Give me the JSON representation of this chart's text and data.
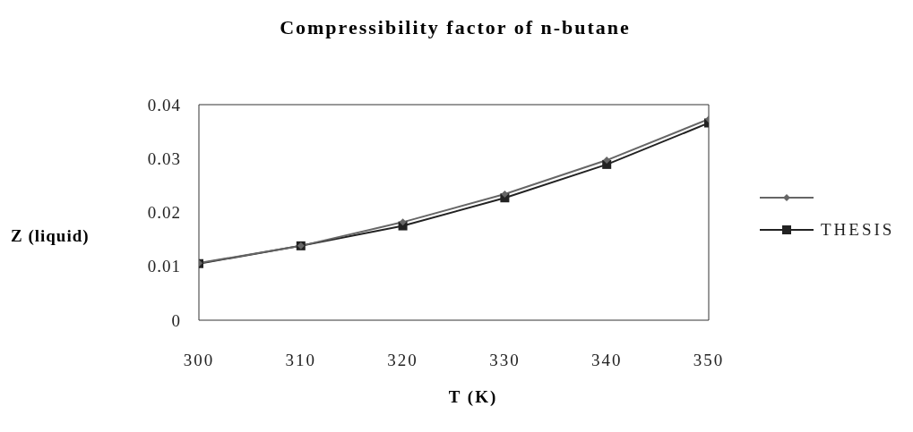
{
  "chart_data": {
    "type": "line",
    "title": "Compressibility factor of n-butane",
    "xlabel": "T (K)",
    "ylabel": "Z (liquid)",
    "x": [
      300,
      310,
      320,
      330,
      340,
      350
    ],
    "series": [
      {
        "color": "#666666",
        "marker": "diamond",
        "values": [
          0.0106,
          0.0138,
          0.0182,
          0.0234,
          0.0297,
          0.0373
        ]
      },
      {
        "name": "THESIS",
        "color": "#222222",
        "marker": "square",
        "values": [
          0.0105,
          0.0138,
          0.0175,
          0.0227,
          0.0289,
          0.0366
        ]
      }
    ],
    "xlim": [
      300,
      350
    ],
    "xticks": [
      300,
      310,
      320,
      330,
      340,
      350
    ],
    "ylim": [
      0,
      0.04
    ],
    "yticks": [
      0,
      0.01,
      0.02,
      0.03,
      0.04
    ],
    "grid": false,
    "legend": "right",
    "line_style": "solid"
  }
}
